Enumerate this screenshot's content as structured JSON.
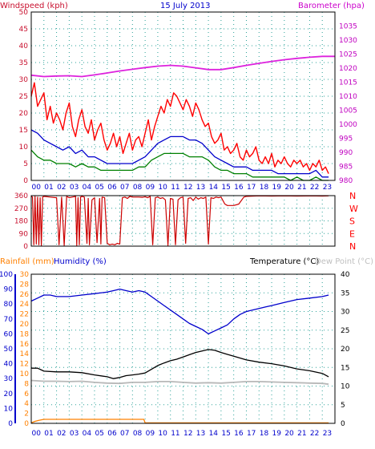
{
  "title": "15 July 2013",
  "colors": {
    "background": "#ffffff",
    "plot_bg": "#ffffff",
    "grid": "#2aa198",
    "axis": "#000000",
    "wind_title": "#c8102e",
    "baro_title": "#cc00cc",
    "wind_gust": "#ff0000",
    "wind_avg": "#0000cc",
    "wind_dir": "#cc0000",
    "beaufort": "#008000",
    "pressure": "#dd22dd",
    "rain": "#ff8000",
    "humidity": "#0000cc",
    "temperature": "#000000",
    "dewpoint": "#b8b8b8",
    "rain_label": "#ff8000",
    "hum_label": "#0000cc",
    "temp_label": "#000000",
    "dew_label": "#c0c0c0",
    "left_axis_wind": "#c8102e",
    "right_axis_baro": "#c000c0",
    "left_axis_humid": "#0000cc",
    "left_axis_rain": "#ff8000",
    "compass": "#ff0000"
  },
  "x_hours": [
    "00",
    "01",
    "02",
    "03",
    "04",
    "05",
    "06",
    "07",
    "08",
    "09",
    "10",
    "11",
    "12",
    "13",
    "14",
    "15",
    "16",
    "17",
    "18",
    "19",
    "20",
    "21",
    "22",
    "23"
  ],
  "chart_data": [
    {
      "type": "line",
      "title": "15 July 2013",
      "panel": "wind_pressure",
      "xlabel": "",
      "ylabel_left": "Windspeed (kph)",
      "ylabel_right": "Barometer (hpa)",
      "xlim": [
        0,
        24
      ],
      "ylim_left": [
        0,
        50
      ],
      "ylim_right": [
        980,
        1040
      ],
      "y_ticks_left": [
        0,
        5,
        10,
        15,
        20,
        25,
        30,
        35,
        40,
        45,
        50
      ],
      "y_ticks_right": [
        980,
        985,
        990,
        995,
        1000,
        1005,
        1010,
        1015,
        1020,
        1025,
        1030,
        1035
      ],
      "grid": true,
      "series": [
        {
          "name": "Gust",
          "axis": "left",
          "x": [
            0,
            0.25,
            0.5,
            0.75,
            1,
            1.25,
            1.5,
            1.75,
            2,
            2.25,
            2.5,
            2.75,
            3,
            3.25,
            3.5,
            3.75,
            4,
            4.25,
            4.5,
            4.75,
            5,
            5.25,
            5.5,
            5.75,
            6,
            6.25,
            6.5,
            6.75,
            7,
            7.25,
            7.5,
            7.75,
            8,
            8.25,
            8.5,
            8.75,
            9,
            9.25,
            9.5,
            9.75,
            10,
            10.25,
            10.5,
            10.75,
            11,
            11.25,
            11.5,
            11.75,
            12,
            12.25,
            12.5,
            12.75,
            13,
            13.25,
            13.5,
            13.75,
            14,
            14.25,
            14.5,
            14.75,
            15,
            15.25,
            15.5,
            15.75,
            16,
            16.25,
            16.5,
            16.75,
            17,
            17.25,
            17.5,
            17.75,
            18,
            18.25,
            18.5,
            18.75,
            19,
            19.25,
            19.5,
            19.75,
            20,
            20.25,
            20.5,
            20.75,
            21,
            21.25,
            21.5,
            21.75,
            22,
            22.25,
            22.5,
            22.75,
            23,
            23.25,
            23.5
          ],
          "values": [
            25,
            29,
            22,
            24,
            26,
            18,
            22,
            17,
            20,
            18,
            15,
            20,
            23,
            16,
            13,
            18,
            21,
            16,
            14,
            18,
            12,
            15,
            17,
            12,
            9,
            11,
            14,
            10,
            13,
            8,
            11,
            14,
            9,
            12,
            13,
            10,
            14,
            18,
            12,
            16,
            19,
            22,
            20,
            24,
            22,
            26,
            25,
            23,
            21,
            24,
            22,
            19,
            23,
            21,
            18,
            16,
            17,
            13,
            11,
            12,
            14,
            9,
            10,
            8,
            9,
            11,
            7,
            6,
            9,
            7,
            8,
            10,
            6,
            5,
            7,
            5,
            8,
            4,
            6,
            5,
            7,
            5,
            4,
            6,
            5,
            6,
            4,
            5,
            3,
            5,
            4,
            6,
            3,
            4,
            2
          ]
        },
        {
          "name": "Average",
          "axis": "left",
          "x": [
            0,
            0.5,
            1,
            1.5,
            2,
            2.5,
            3,
            3.5,
            4,
            4.5,
            5,
            5.5,
            6,
            6.5,
            7,
            7.5,
            8,
            8.5,
            9,
            9.5,
            10,
            10.5,
            11,
            11.5,
            12,
            12.5,
            13,
            13.5,
            14,
            14.5,
            15,
            15.5,
            16,
            16.5,
            17,
            17.5,
            18,
            18.5,
            19,
            19.5,
            20,
            20.5,
            21,
            21.5,
            22,
            22.5,
            23,
            23.5
          ],
          "values": [
            15,
            14,
            12,
            11,
            10,
            9,
            10,
            8,
            9,
            7,
            7,
            6,
            5,
            5,
            5,
            5,
            5,
            6,
            7,
            9,
            11,
            12,
            13,
            13,
            13,
            12,
            12,
            11,
            9,
            7,
            6,
            5,
            4,
            4,
            4,
            3,
            3,
            3,
            3,
            2,
            2,
            2,
            2,
            2,
            2,
            3,
            1,
            1
          ]
        },
        {
          "name": "Beaufort",
          "axis": "left",
          "x": [
            0,
            0.5,
            1,
            1.5,
            2,
            2.5,
            3,
            3.5,
            4,
            4.5,
            5,
            5.5,
            6,
            6.5,
            7,
            7.5,
            8,
            8.5,
            9,
            9.5,
            10,
            10.5,
            11,
            11.5,
            12,
            12.5,
            13,
            13.5,
            14,
            14.5,
            15,
            15.5,
            16,
            16.5,
            17,
            17.5,
            18,
            18.5,
            19,
            19.5,
            20,
            20.5,
            21,
            21.5,
            22,
            22.5,
            23,
            23.5
          ],
          "values": [
            9,
            7,
            6,
            6,
            5,
            5,
            5,
            4,
            5,
            4,
            4,
            3,
            3,
            3,
            3,
            3,
            3,
            4,
            4,
            6,
            7,
            8,
            8,
            8,
            8,
            7,
            7,
            7,
            6,
            4,
            3,
            3,
            2,
            2,
            2,
            1,
            1,
            1,
            1,
            1,
            1,
            0,
            1,
            0,
            0,
            1,
            0,
            0
          ]
        },
        {
          "name": "Barometer",
          "axis": "right",
          "x": [
            0,
            1,
            2,
            3,
            4,
            5,
            6,
            7,
            8,
            9,
            10,
            11,
            12,
            13,
            14,
            15,
            16,
            17,
            18,
            19,
            20,
            21,
            22,
            23,
            24
          ],
          "values": [
            1017.5,
            1017,
            1017.2,
            1017.3,
            1017,
            1017.6,
            1018.3,
            1019,
            1019.6,
            1020.2,
            1020.7,
            1021,
            1020.7,
            1020.1,
            1019.5,
            1019.5,
            1020.2,
            1021,
            1021.7,
            1022.4,
            1023.0,
            1023.5,
            1023.9,
            1024.2,
            1024.2
          ]
        }
      ]
    },
    {
      "type": "line",
      "panel": "wind_direction",
      "xlim": [
        0,
        24
      ],
      "ylim": [
        0,
        360
      ],
      "y_ticks": [
        0,
        90,
        180,
        270,
        360
      ],
      "compass_labels": [
        "N",
        "W",
        "S",
        "E",
        "N"
      ],
      "grid": true,
      "series": [
        {
          "name": "Direction",
          "x": [
            0,
            0.1,
            0.2,
            0.3,
            0.4,
            0.5,
            0.6,
            0.7,
            0.8,
            0.9,
            1,
            1.5,
            2,
            2.2,
            2.4,
            2.6,
            2.8,
            3,
            3.5,
            3.6,
            3.7,
            3.8,
            3.9,
            4,
            4.2,
            4.4,
            4.5,
            4.6,
            4.8,
            5,
            5.2,
            5.4,
            5.5,
            5.6,
            5.8,
            6,
            6.2,
            6.4,
            6.6,
            6.8,
            7,
            7.2,
            7.4,
            7.6,
            7.8,
            8,
            8.5,
            8.8,
            9,
            9.2,
            9.4,
            9.6,
            9.8,
            10,
            10.2,
            10.4,
            10.6,
            10.8,
            11,
            11.2,
            11.4,
            11.6,
            11.8,
            12,
            12.2,
            12.4,
            12.6,
            12.8,
            13,
            13.2,
            13.4,
            13.6,
            13.8,
            14,
            14.2,
            14.4,
            14.6,
            14.8,
            15,
            15.3,
            15.5,
            16,
            16.4,
            16.8,
            17,
            18,
            19,
            20,
            21,
            22,
            23,
            23.5
          ],
          "values": [
            355,
            350,
            10,
            355,
            15,
            350,
            10,
            345,
            5,
            350,
            355,
            350,
            345,
            10,
            350,
            5,
            355,
            345,
            355,
            5,
            345,
            10,
            350,
            355,
            350,
            20,
            340,
            10,
            330,
            345,
            25,
            340,
            15,
            350,
            345,
            20,
            10,
            15,
            10,
            20,
            15,
            345,
            350,
            340,
            355,
            350,
            350,
            348,
            352,
            345,
            355,
            10,
            345,
            350,
            340,
            345,
            330,
            5,
            340,
            335,
            10,
            330,
            345,
            350,
            20,
            340,
            345,
            325,
            350,
            335,
            345,
            340,
            350,
            15,
            345,
            340,
            350,
            345,
            350,
            300,
            290,
            290,
            300,
            350,
            355,
            358,
            357,
            358,
            357,
            358,
            357,
            358
          ]
        }
      ]
    },
    {
      "type": "line",
      "panel": "temperature_humidity_rain",
      "title_rain": "Rainfall (mm)",
      "title_humidity": "Humidity (%)",
      "title_temperature": "Temperature (°C)",
      "title_dewpoint": "Dew Point (°C)",
      "xlim": [
        0,
        24
      ],
      "ylim_humidity": [
        0,
        100
      ],
      "ylim_rain": [
        0,
        30
      ],
      "ylim_temperature": [
        0,
        40
      ],
      "y_ticks_humidity": [
        0,
        10,
        20,
        30,
        40,
        50,
        60,
        70,
        80,
        90,
        100
      ],
      "y_ticks_rain": [
        0,
        2,
        4,
        6,
        8,
        10,
        12,
        14,
        16,
        18,
        20,
        22,
        24,
        26,
        28,
        30
      ],
      "y_ticks_temperature": [
        0,
        5,
        10,
        15,
        20,
        25,
        30,
        35,
        40
      ],
      "grid": true,
      "series": [
        {
          "name": "Humidity",
          "axis": "humidity",
          "x": [
            0,
            0.5,
            1,
            1.5,
            2,
            3,
            4,
            5,
            6,
            6.5,
            7,
            7.5,
            8,
            8.5,
            9,
            9.5,
            10,
            10.5,
            11,
            11.5,
            12,
            12.5,
            13,
            13.5,
            14,
            14.5,
            15,
            15.5,
            16,
            16.5,
            17,
            17.5,
            18,
            18.5,
            19,
            20,
            21,
            22,
            23,
            23.5
          ],
          "values": [
            82,
            84,
            86,
            86,
            85,
            85,
            86,
            87,
            88,
            89,
            90,
            89,
            88,
            89,
            88,
            85,
            82,
            79,
            76,
            73,
            70,
            67,
            65,
            63,
            60,
            62,
            64,
            66,
            70,
            73,
            75,
            76,
            77,
            78,
            79,
            81,
            83,
            84,
            85,
            86
          ]
        },
        {
          "name": "Temperature",
          "axis": "temperature",
          "x": [
            0,
            0.5,
            1,
            2,
            3,
            4,
            5,
            6,
            6.5,
            7,
            7.5,
            8,
            8.5,
            9,
            9.5,
            10,
            10.5,
            11,
            11.5,
            12,
            12.5,
            13,
            13.5,
            14,
            14.5,
            15,
            15.5,
            16,
            17,
            18,
            19,
            20,
            21,
            22,
            23,
            23.5
          ],
          "values": [
            14.8,
            14.8,
            14,
            13.8,
            13.8,
            13.6,
            13,
            12.5,
            12,
            12.3,
            12.8,
            13,
            13.2,
            13.5,
            14.5,
            15.5,
            16.2,
            16.8,
            17.2,
            17.8,
            18.4,
            19,
            19.4,
            19.8,
            19.6,
            19,
            18.5,
            18,
            17,
            16.4,
            16,
            15.4,
            14.6,
            14.1,
            13.4,
            12.5
          ]
        },
        {
          "name": "Dew Point",
          "axis": "temperature",
          "x": [
            0,
            1,
            2,
            3,
            4,
            5,
            6,
            7,
            8,
            9,
            10,
            11,
            12,
            13,
            14,
            15,
            16,
            17,
            18,
            19,
            20,
            21,
            22,
            23,
            23.5
          ],
          "values": [
            11.5,
            11.3,
            11.3,
            11.2,
            11.3,
            11,
            10.8,
            10.7,
            11,
            11,
            11.2,
            11.2,
            11,
            10.8,
            10.9,
            10.8,
            11,
            11.2,
            11.2,
            11.1,
            11,
            10.9,
            10.8,
            10.7,
            10.5
          ]
        },
        {
          "name": "Rainfall",
          "axis": "rain",
          "x": [
            0,
            0.3,
            0.6,
            1,
            2,
            3,
            4,
            5,
            6,
            7,
            8,
            8.9,
            9,
            10,
            12,
            14,
            16,
            18,
            20,
            22,
            23.5
          ],
          "values": [
            0.1,
            0.4,
            0.6,
            0.8,
            0.8,
            0.8,
            0.8,
            0.8,
            0.8,
            0.8,
            0.8,
            0.8,
            0.1,
            0.1,
            0.1,
            0.1,
            0.1,
            0.1,
            0.1,
            0.1,
            0.1
          ]
        }
      ]
    }
  ]
}
